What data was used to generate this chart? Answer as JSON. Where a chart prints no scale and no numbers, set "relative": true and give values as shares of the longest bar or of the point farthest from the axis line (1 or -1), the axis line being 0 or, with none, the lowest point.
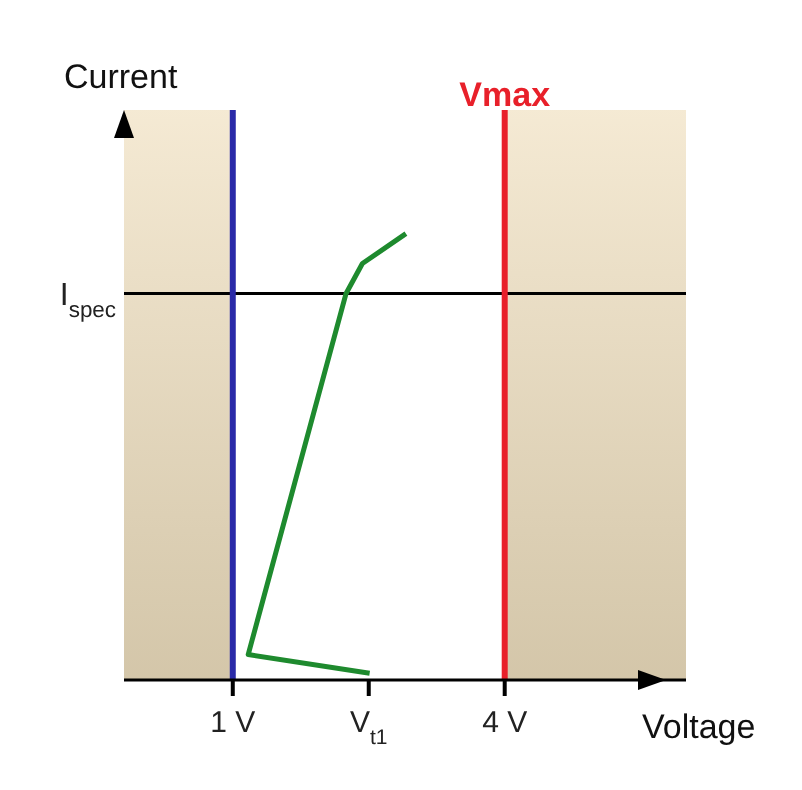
{
  "chart_data": {
    "type": "line",
    "xlabel": "Voltage",
    "ylabel": "Current",
    "relative": true,
    "xlim": [
      -0.2,
      6
    ],
    "xticks": [
      {
        "value": 1,
        "label": "1 V"
      },
      {
        "value": 2.5,
        "label": "V$_{t1}$"
      },
      {
        "value": 4,
        "label": "4 V"
      }
    ],
    "series": [
      {
        "color": "#1e8a2e",
        "x": [
          2.51,
          1.17,
          2.25,
          2.43,
          2.91
        ],
        "values": [
          0.015,
          0.057,
          0.866,
          0.933,
          1
        ]
      }
    ],
    "marker": "none",
    "ref_lines": [
      {
        "axis": "y",
        "value": 0.866,
        "label": "I$_{spec}$",
        "color": "#000000"
      },
      {
        "axis": "x",
        "value": 1,
        "color": "#2a2aa8"
      },
      {
        "axis": "x",
        "value": 4,
        "label": "Vmax",
        "color": "#e8202a"
      }
    ],
    "bands": [
      {
        "axis": "x",
        "from": -0.2,
        "to": 1,
        "color": "#f3e6cc"
      },
      {
        "axis": "x",
        "from": 4,
        "to": 6,
        "color": "#f3e6cc"
      }
    ]
  }
}
